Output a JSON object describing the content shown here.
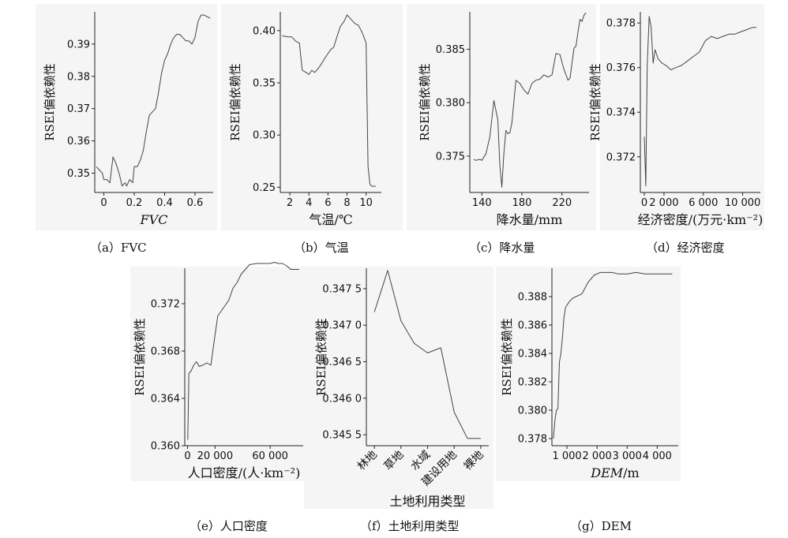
{
  "chart_data": [
    {
      "id": "a",
      "type": "line",
      "caption": "（a）FVC",
      "xlabel": "FVC",
      "xlabel_style": "italic",
      "ylabel": "RSEI偏依赖性",
      "xlim": [
        -0.06,
        0.72
      ],
      "ylim": [
        0.344,
        0.4
      ],
      "xticks": [
        0,
        0.2,
        0.4,
        0.6
      ],
      "xtick_labels": [
        "0",
        "0.2",
        "0.4",
        "0.6"
      ],
      "yticks": [
        0.35,
        0.36,
        0.37,
        0.38,
        0.39
      ],
      "ytick_labels": [
        "0.35",
        "0.36",
        "0.37",
        "0.38",
        "0.39"
      ],
      "x": [
        -0.05,
        -0.03,
        -0.01,
        0.0,
        0.02,
        0.04,
        0.06,
        0.08,
        0.1,
        0.12,
        0.14,
        0.15,
        0.17,
        0.19,
        0.2,
        0.22,
        0.24,
        0.26,
        0.28,
        0.3,
        0.32,
        0.34,
        0.36,
        0.38,
        0.4,
        0.42,
        0.44,
        0.46,
        0.48,
        0.5,
        0.52,
        0.54,
        0.56,
        0.58,
        0.6,
        0.62,
        0.64,
        0.66,
        0.7
      ],
      "y": [
        0.352,
        0.351,
        0.35,
        0.348,
        0.348,
        0.347,
        0.355,
        0.353,
        0.35,
        0.346,
        0.347,
        0.346,
        0.348,
        0.347,
        0.352,
        0.352,
        0.354,
        0.357,
        0.363,
        0.368,
        0.369,
        0.37,
        0.375,
        0.381,
        0.385,
        0.387,
        0.39,
        0.392,
        0.393,
        0.393,
        0.392,
        0.391,
        0.391,
        0.39,
        0.392,
        0.397,
        0.399,
        0.399,
        0.398
      ]
    },
    {
      "id": "b",
      "type": "line",
      "caption": "（b）气温",
      "xlabel": "气温/℃",
      "ylabel": "RSEI偏依赖性",
      "xlim": [
        1.0,
        11.6
      ],
      "ylim": [
        0.245,
        0.418
      ],
      "xticks": [
        2,
        4,
        6,
        8,
        10
      ],
      "xtick_labels": [
        "2",
        "4",
        "6",
        "8",
        "10"
      ],
      "yticks": [
        0.25,
        0.3,
        0.35,
        0.4
      ],
      "ytick_labels": [
        "0.25",
        "0.30",
        "0.35",
        "0.40"
      ],
      "x": [
        1.2,
        1.8,
        2.2,
        2.6,
        3.0,
        3.3,
        3.7,
        4.0,
        4.3,
        4.6,
        5.0,
        5.3,
        5.7,
        6.0,
        6.3,
        6.6,
        7.0,
        7.3,
        7.7,
        8.0,
        8.4,
        8.8,
        9.2,
        9.6,
        9.8,
        10.0,
        10.2,
        10.4,
        10.6,
        11.0
      ],
      "y": [
        0.395,
        0.394,
        0.394,
        0.39,
        0.388,
        0.362,
        0.36,
        0.358,
        0.362,
        0.36,
        0.364,
        0.368,
        0.374,
        0.378,
        0.382,
        0.384,
        0.396,
        0.404,
        0.409,
        0.415,
        0.411,
        0.407,
        0.405,
        0.398,
        0.393,
        0.388,
        0.27,
        0.253,
        0.251,
        0.251
      ]
    },
    {
      "id": "c",
      "type": "line",
      "caption": "（c）降水量",
      "xlabel": "降水量/mm",
      "ylabel": "RSEI偏依赖性",
      "xlim": [
        128,
        247
      ],
      "ylim": [
        0.3716,
        0.3885
      ],
      "xticks": [
        140,
        180,
        220
      ],
      "xtick_labels": [
        "140",
        "180",
        "220"
      ],
      "yticks": [
        0.375,
        0.38,
        0.385
      ],
      "ytick_labels": [
        "0.375",
        "0.380",
        "0.385"
      ],
      "x": [
        132,
        134,
        138,
        140,
        144,
        148,
        152,
        156,
        158,
        160,
        162,
        164,
        166,
        168,
        170,
        174,
        178,
        182,
        186,
        190,
        194,
        198,
        202,
        206,
        210,
        214,
        218,
        222,
        226,
        228,
        232,
        234,
        236,
        238,
        240,
        242,
        244
      ],
      "y": [
        0.3747,
        0.3746,
        0.3747,
        0.3746,
        0.3752,
        0.3768,
        0.3802,
        0.3784,
        0.3741,
        0.3721,
        0.3752,
        0.3774,
        0.3771,
        0.3772,
        0.3781,
        0.3821,
        0.3818,
        0.3812,
        0.3808,
        0.3818,
        0.3821,
        0.3822,
        0.3826,
        0.3824,
        0.3826,
        0.3846,
        0.3845,
        0.3831,
        0.3821,
        0.3823,
        0.3851,
        0.3853,
        0.3866,
        0.3878,
        0.3876,
        0.3882,
        0.3884
      ]
    },
    {
      "id": "d",
      "type": "line",
      "caption": "（d）经济密度",
      "xlabel": "经济密度/(万元·km⁻²)",
      "ylabel": "RSEI偏依赖性",
      "xlim": [
        -400,
        11800
      ],
      "ylim": [
        0.3704,
        0.3785
      ],
      "xticks": [
        0,
        2000,
        6000,
        10000
      ],
      "xtick_labels": [
        "0",
        "2 000",
        "6 000",
        "10 000"
      ],
      "yticks": [
        0.372,
        0.374,
        0.376,
        0.378
      ],
      "ytick_labels": [
        "0.372",
        "0.374",
        "0.376",
        "0.378"
      ],
      "x": [
        0,
        150,
        300,
        500,
        700,
        900,
        1100,
        1400,
        1800,
        2200,
        2700,
        3200,
        3800,
        4400,
        5000,
        5600,
        6200,
        6800,
        7400,
        8000,
        8600,
        9200,
        9800,
        10400,
        11000,
        11400
      ],
      "y": [
        0.3729,
        0.3707,
        0.3761,
        0.3783,
        0.3778,
        0.3762,
        0.3768,
        0.3764,
        0.3762,
        0.3761,
        0.3759,
        0.376,
        0.3761,
        0.3763,
        0.3765,
        0.3767,
        0.3772,
        0.3774,
        0.3773,
        0.3774,
        0.3775,
        0.3775,
        0.3776,
        0.3777,
        0.3778,
        0.3778
      ]
    },
    {
      "id": "e",
      "type": "line",
      "caption": "（e）人口密度",
      "xlabel": "人口密度/(人·km⁻²)",
      "ylabel": "RSEI偏依赖性",
      "xlim": [
        -2000,
        84000
      ],
      "ylim": [
        0.36,
        0.375
      ],
      "xticks": [
        0,
        20000,
        60000
      ],
      "xtick_labels": [
        "0",
        "20 000",
        "60 000"
      ],
      "yticks": [
        0.36,
        0.364,
        0.368,
        0.372
      ],
      "ytick_labels": [
        "0.360",
        "0.364",
        "0.368",
        "0.372"
      ],
      "x": [
        200,
        1000,
        2500,
        4500,
        6500,
        8500,
        11000,
        14000,
        17000,
        20000,
        22000,
        24000,
        27000,
        30000,
        33000,
        36000,
        39000,
        42000,
        45000,
        50000,
        55000,
        60000,
        63000,
        66000,
        69000,
        72000,
        75000,
        78000,
        81000
      ],
      "y": [
        0.3605,
        0.3661,
        0.3663,
        0.3668,
        0.3671,
        0.3667,
        0.3668,
        0.367,
        0.3668,
        0.3694,
        0.371,
        0.3713,
        0.3718,
        0.3723,
        0.3733,
        0.3738,
        0.3745,
        0.3749,
        0.3753,
        0.3754,
        0.3754,
        0.3754,
        0.3755,
        0.3754,
        0.3754,
        0.3752,
        0.3749,
        0.3749,
        0.3749
      ]
    },
    {
      "id": "f",
      "type": "line",
      "caption": "（f）土地利用类型",
      "xlabel": "土地利用类型",
      "ylabel": "RSEI偏依赖性",
      "categories": [
        "林地",
        "草地",
        "水域",
        "建设用地",
        "裸地"
      ],
      "ylim": [
        0.34535,
        0.34778
      ],
      "yticks": [
        0.3455,
        0.346,
        0.3465,
        0.347,
        0.3475
      ],
      "ytick_labels": [
        "0.345 5",
        "0.346 0",
        "0.346 5",
        "0.347 0",
        "0.347 5"
      ],
      "x": [
        0,
        0.5,
        1,
        1.5,
        2,
        2.5,
        3,
        3.5,
        4
      ],
      "y": [
        0.34718,
        0.34775,
        0.34706,
        0.34675,
        0.34662,
        0.34669,
        0.34581,
        0.34545,
        0.34545
      ]
    },
    {
      "id": "g",
      "type": "line",
      "caption": "（g）DEM",
      "xlabel": "DEM/m",
      "xlabel_style": "italic-first-part",
      "ylabel": "RSEI偏依赖性",
      "xlim": [
        500,
        4700
      ],
      "ylim": [
        0.3775,
        0.39
      ],
      "xticks": [
        1000,
        2000,
        3000,
        4000
      ],
      "xtick_labels": [
        "1 000",
        "2 000",
        "3 000",
        "4 000"
      ],
      "yticks": [
        0.378,
        0.38,
        0.382,
        0.384,
        0.386,
        0.388
      ],
      "ytick_labels": [
        "0.378",
        "0.380",
        "0.382",
        "0.384",
        "0.386",
        "0.388"
      ],
      "x": [
        550,
        600,
        650,
        700,
        750,
        800,
        850,
        900,
        950,
        1000,
        1100,
        1200,
        1300,
        1500,
        1700,
        1900,
        2100,
        2300,
        2500,
        2700,
        3000,
        3300,
        3600,
        3900,
        4200,
        4500
      ],
      "y": [
        0.378,
        0.3793,
        0.38,
        0.3801,
        0.3834,
        0.384,
        0.3851,
        0.3865,
        0.3872,
        0.3874,
        0.3877,
        0.3879,
        0.388,
        0.3882,
        0.389,
        0.3895,
        0.3897,
        0.3897,
        0.3897,
        0.3896,
        0.3896,
        0.3897,
        0.3896,
        0.3896,
        0.3896,
        0.3896
      ]
    }
  ]
}
